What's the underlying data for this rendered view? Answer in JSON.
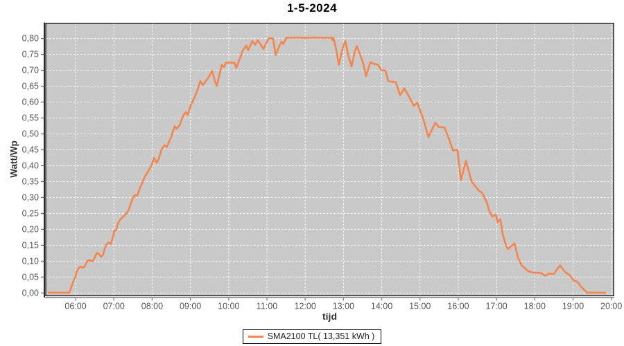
{
  "chart": {
    "title": "1-5-2024",
    "y_axis_label": "Watt/Wp",
    "x_axis_label": "tijd",
    "legend": {
      "label": "SMA2100 TL( 13,351 kWh )"
    }
  },
  "chart_data": {
    "type": "line",
    "title": "1-5-2024",
    "xlabel": "tijd",
    "ylabel": "Watt/Wp",
    "legend_position": "bottom-center",
    "grid": "white-dashed",
    "plot_bg": "#c9c9c9",
    "grid_color": "#ffffff",
    "border_color": "#000000",
    "tick_label_color": "#555555",
    "x_tick_labels": [
      "06:00",
      "07:00",
      "08:00",
      "09:00",
      "10:00",
      "11:00",
      "12:00",
      "13:00",
      "14:00",
      "15:00",
      "16:00",
      "17:00",
      "18:00",
      "19:00",
      "20:00"
    ],
    "x_tick_hours": [
      6,
      7,
      8,
      9,
      10,
      11,
      12,
      13,
      14,
      15,
      16,
      17,
      18,
      19,
      20
    ],
    "y_tick_labels": [
      "0,00",
      "0,05",
      "0,10",
      "0,15",
      "0,20",
      "0,25",
      "0,30",
      "0,35",
      "0,40",
      "0,45",
      "0,50",
      "0,55",
      "0,60",
      "0,65",
      "0,70",
      "0,75",
      "0,80"
    ],
    "y_tick_values": [
      0,
      0.05,
      0.1,
      0.15,
      0.2,
      0.25,
      0.3,
      0.35,
      0.4,
      0.45,
      0.5,
      0.55,
      0.6,
      0.65,
      0.7,
      0.75,
      0.8
    ],
    "xlim": [
      5.22,
      20.06
    ],
    "ylim": [
      -0.009,
      0.848
    ],
    "series": [
      {
        "name": "SMA2100 TL( 13,351 kWh )",
        "color": "#f4854d",
        "points": [
          [
            5.29,
            0.001
          ],
          [
            5.6,
            0.001
          ],
          [
            5.84,
            0.001
          ],
          [
            5.89,
            0.02
          ],
          [
            5.96,
            0.042
          ],
          [
            6.0,
            0.052
          ],
          [
            6.03,
            0.068
          ],
          [
            6.09,
            0.08
          ],
          [
            6.13,
            0.083
          ],
          [
            6.18,
            0.079
          ],
          [
            6.23,
            0.082
          ],
          [
            6.27,
            0.092
          ],
          [
            6.31,
            0.101
          ],
          [
            6.36,
            0.103
          ],
          [
            6.45,
            0.1
          ],
          [
            6.5,
            0.112
          ],
          [
            6.56,
            0.126
          ],
          [
            6.61,
            0.122
          ],
          [
            6.67,
            0.114
          ],
          [
            6.72,
            0.121
          ],
          [
            6.76,
            0.139
          ],
          [
            6.81,
            0.153
          ],
          [
            6.87,
            0.159
          ],
          [
            6.92,
            0.154
          ],
          [
            6.98,
            0.176
          ],
          [
            7.01,
            0.195
          ],
          [
            7.06,
            0.198
          ],
          [
            7.1,
            0.217
          ],
          [
            7.16,
            0.23
          ],
          [
            7.21,
            0.236
          ],
          [
            7.29,
            0.245
          ],
          [
            7.34,
            0.252
          ],
          [
            7.39,
            0.262
          ],
          [
            7.45,
            0.283
          ],
          [
            7.5,
            0.3
          ],
          [
            7.56,
            0.308
          ],
          [
            7.61,
            0.305
          ],
          [
            7.68,
            0.33
          ],
          [
            7.74,
            0.346
          ],
          [
            7.81,
            0.366
          ],
          [
            7.87,
            0.377
          ],
          [
            7.92,
            0.387
          ],
          [
            7.97,
            0.398
          ],
          [
            8.05,
            0.424
          ],
          [
            8.12,
            0.409
          ],
          [
            8.17,
            0.421
          ],
          [
            8.25,
            0.452
          ],
          [
            8.32,
            0.464
          ],
          [
            8.39,
            0.459
          ],
          [
            8.45,
            0.478
          ],
          [
            8.5,
            0.49
          ],
          [
            8.54,
            0.507
          ],
          [
            8.59,
            0.524
          ],
          [
            8.64,
            0.516
          ],
          [
            8.72,
            0.528
          ],
          [
            8.77,
            0.545
          ],
          [
            8.83,
            0.561
          ],
          [
            8.88,
            0.568
          ],
          [
            8.93,
            0.56
          ],
          [
            9.02,
            0.593
          ],
          [
            9.11,
            0.615
          ],
          [
            9.19,
            0.64
          ],
          [
            9.26,
            0.666
          ],
          [
            9.33,
            0.654
          ],
          [
            9.46,
            0.675
          ],
          [
            9.57,
            0.698
          ],
          [
            9.64,
            0.666
          ],
          [
            9.69,
            0.651
          ],
          [
            9.82,
            0.717
          ],
          [
            9.88,
            0.71
          ],
          [
            9.93,
            0.724
          ],
          [
            10.15,
            0.724
          ],
          [
            10.2,
            0.707
          ],
          [
            10.37,
            0.762
          ],
          [
            10.46,
            0.778
          ],
          [
            10.51,
            0.763
          ],
          [
            10.62,
            0.792
          ],
          [
            10.69,
            0.78
          ],
          [
            10.76,
            0.795
          ],
          [
            10.84,
            0.78
          ],
          [
            10.91,
            0.767
          ],
          [
            11.05,
            0.801
          ],
          [
            11.16,
            0.8
          ],
          [
            11.23,
            0.748
          ],
          [
            11.33,
            0.778
          ],
          [
            11.38,
            0.79
          ],
          [
            11.43,
            0.782
          ],
          [
            11.51,
            0.802
          ],
          [
            11.75,
            0.803
          ],
          [
            12.0,
            0.802
          ],
          [
            12.25,
            0.803
          ],
          [
            12.5,
            0.802
          ],
          [
            12.68,
            0.803
          ],
          [
            12.71,
            0.795
          ],
          [
            12.74,
            0.802
          ],
          [
            12.82,
            0.76
          ],
          [
            12.88,
            0.717
          ],
          [
            12.98,
            0.77
          ],
          [
            13.05,
            0.792
          ],
          [
            13.13,
            0.745
          ],
          [
            13.21,
            0.712
          ],
          [
            13.3,
            0.76
          ],
          [
            13.35,
            0.776
          ],
          [
            13.45,
            0.745
          ],
          [
            13.52,
            0.72
          ],
          [
            13.59,
            0.681
          ],
          [
            13.7,
            0.725
          ],
          [
            13.78,
            0.721
          ],
          [
            13.9,
            0.718
          ],
          [
            13.99,
            0.7
          ],
          [
            14.1,
            0.699
          ],
          [
            14.17,
            0.666
          ],
          [
            14.37,
            0.662
          ],
          [
            14.48,
            0.622
          ],
          [
            14.59,
            0.643
          ],
          [
            14.7,
            0.62
          ],
          [
            14.84,
            0.588
          ],
          [
            14.93,
            0.598
          ],
          [
            15.09,
            0.545
          ],
          [
            15.22,
            0.49
          ],
          [
            15.4,
            0.535
          ],
          [
            15.49,
            0.522
          ],
          [
            15.64,
            0.52
          ],
          [
            15.75,
            0.487
          ],
          [
            15.86,
            0.448
          ],
          [
            15.98,
            0.45
          ],
          [
            16.07,
            0.355
          ],
          [
            16.2,
            0.415
          ],
          [
            16.35,
            0.35
          ],
          [
            16.53,
            0.323
          ],
          [
            16.62,
            0.315
          ],
          [
            16.75,
            0.284
          ],
          [
            16.8,
            0.26
          ],
          [
            16.89,
            0.24
          ],
          [
            16.98,
            0.247
          ],
          [
            17.03,
            0.222
          ],
          [
            17.1,
            0.232
          ],
          [
            17.16,
            0.186
          ],
          [
            17.25,
            0.148
          ],
          [
            17.3,
            0.138
          ],
          [
            17.47,
            0.156
          ],
          [
            17.56,
            0.112
          ],
          [
            17.65,
            0.088
          ],
          [
            17.83,
            0.068
          ],
          [
            17.95,
            0.064
          ],
          [
            18.15,
            0.063
          ],
          [
            18.28,
            0.054
          ],
          [
            18.37,
            0.061
          ],
          [
            18.5,
            0.06
          ],
          [
            18.66,
            0.087
          ],
          [
            18.79,
            0.066
          ],
          [
            18.92,
            0.055
          ],
          [
            19.01,
            0.04
          ],
          [
            19.12,
            0.035
          ],
          [
            19.19,
            0.022
          ],
          [
            19.28,
            0.011
          ],
          [
            19.37,
            0.001
          ],
          [
            19.6,
            0.001
          ],
          [
            19.84,
            0.001
          ]
        ]
      }
    ]
  }
}
